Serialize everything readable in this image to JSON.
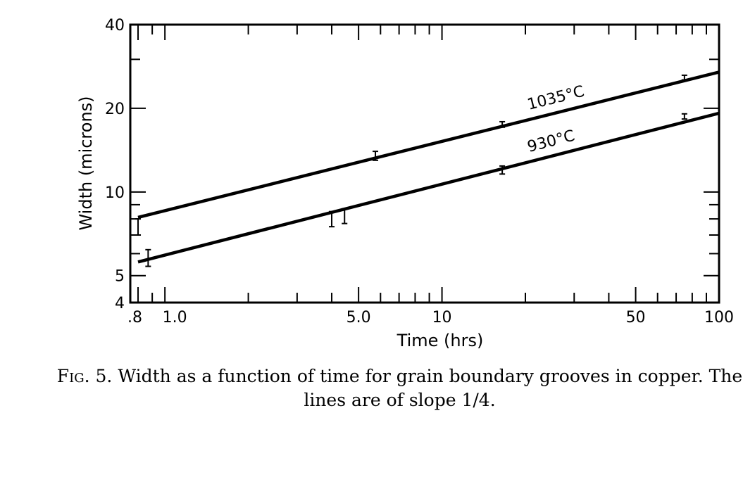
{
  "caption": {
    "label": "Fig. 5.",
    "text": "Width as a function of time for grain boundary grooves in copper. The lines are of slope 1/4."
  },
  "chart_data": {
    "type": "line",
    "title": "",
    "xlabel": "Time (hrs)",
    "ylabel": "Width (microns)",
    "xscale": "log",
    "yscale": "log",
    "xlim": [
      0.75,
      100
    ],
    "ylim": [
      4,
      40
    ],
    "xtick_labels": [
      {
        "value": 0.8,
        "label": ".8"
      },
      {
        "value": 1.0,
        "label": "1.0"
      },
      {
        "value": 5.0,
        "label": "5.0"
      },
      {
        "value": 10,
        "label": "10"
      },
      {
        "value": 50,
        "label": "50"
      },
      {
        "value": 100,
        "label": "100"
      }
    ],
    "ytick_labels": [
      {
        "value": 4,
        "label": "4"
      },
      {
        "value": 5,
        "label": "5"
      },
      {
        "value": 10,
        "label": "10"
      },
      {
        "value": 20,
        "label": "20"
      },
      {
        "value": 40,
        "label": "40"
      }
    ],
    "minor_xticks": [
      0.9,
      2,
      3,
      4,
      6,
      7,
      8,
      9,
      20,
      30,
      40,
      60,
      70,
      80,
      90
    ],
    "minor_yticks": [
      6,
      7,
      8,
      9,
      30
    ],
    "grid": false,
    "series": [
      {
        "name": "1035°C",
        "line": [
          [
            0.8,
            8.1
          ],
          [
            100,
            27
          ]
        ],
        "points": [
          {
            "x": 0.8,
            "y": 7.5,
            "err": 0.5
          },
          {
            "x": 5.75,
            "y": 13.5,
            "err": 0.5
          },
          {
            "x": 16.5,
            "y": 17.5,
            "err": 0.4
          },
          {
            "x": 75,
            "y": 25.8,
            "err": 0.5
          }
        ]
      },
      {
        "name": "930°C",
        "line": [
          [
            0.8,
            5.6
          ],
          [
            100,
            19.2
          ]
        ],
        "points": [
          {
            "x": 0.87,
            "y": 5.8,
            "err": 0.4
          },
          {
            "x": 4.0,
            "y": 8.0,
            "err": 0.5
          },
          {
            "x": 4.45,
            "y": 8.2,
            "err": 0.5
          },
          {
            "x": 16.5,
            "y": 12.0,
            "err": 0.4
          },
          {
            "x": 75,
            "y": 18.7,
            "err": 0.4
          }
        ]
      }
    ]
  }
}
